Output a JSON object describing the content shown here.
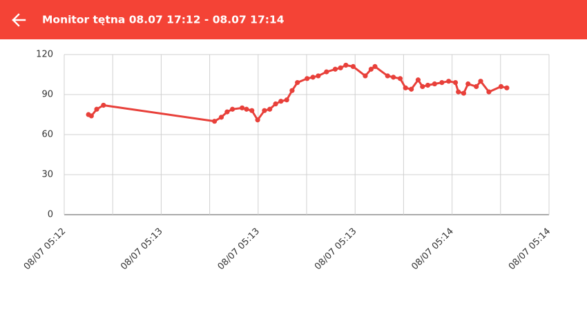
{
  "header": {
    "title": "Monitor tętna 08.07 17:12  - 08.07 17:14"
  },
  "chart_data": {
    "type": "line",
    "x": [
      0.5,
      0.56,
      0.67,
      0.81,
      3.1,
      3.24,
      3.36,
      3.47,
      3.67,
      3.76,
      3.87,
      3.99,
      4.13,
      4.24,
      4.36,
      4.47,
      4.59,
      4.7,
      4.81,
      5.01,
      5.13,
      5.24,
      5.41,
      5.59,
      5.7,
      5.81,
      5.96,
      6.21,
      6.33,
      6.41,
      6.67,
      6.79,
      6.93,
      7.04,
      7.16,
      7.3,
      7.39,
      7.5,
      7.64,
      7.79,
      7.93,
      8.07,
      8.13,
      8.24,
      8.33,
      8.5,
      8.59,
      8.76,
      9.01,
      9.13
    ],
    "series": [
      {
        "color": "#e8403a",
        "values": [
          75,
          74,
          79,
          82,
          70,
          73,
          77,
          79,
          80,
          79,
          78,
          71,
          78,
          79,
          83,
          85,
          86,
          93,
          99,
          102,
          103,
          104,
          107,
          109,
          110,
          112,
          111,
          104,
          109,
          111,
          104,
          103,
          102,
          95,
          94,
          101,
          96,
          97,
          98,
          99,
          100,
          99,
          92,
          91,
          98,
          96,
          100,
          92,
          96,
          95
        ]
      }
    ],
    "xlim": [
      0,
      10
    ],
    "xticks": [
      {
        "value": 0,
        "label": "08/07 05:12"
      },
      {
        "value": 2,
        "label": "08/07 05:13"
      },
      {
        "value": 4,
        "label": "08/07 05:13"
      },
      {
        "value": 6,
        "label": "08/07 05:13"
      },
      {
        "value": 8,
        "label": "08/07 05:14"
      },
      {
        "value": 10,
        "label": "08/07 05:14"
      }
    ],
    "xminor_ticks": [
      1,
      3,
      5,
      7,
      9
    ],
    "ylim": [
      0,
      120
    ],
    "yticks": [
      0,
      30,
      60,
      90,
      120
    ],
    "grid": true
  }
}
